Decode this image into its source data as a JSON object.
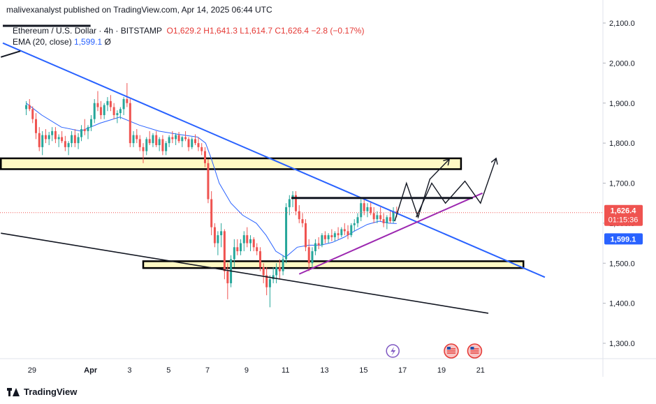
{
  "header": {
    "publisher_line": "malivexanalyst published on TradingView.com, Apr 14, 2025 06:44 UTC"
  },
  "legend": {
    "symbol": "Ethereum / U.S. Dollar · 4h · BITSTAMP",
    "open": "O1,629.2",
    "high": "H1,641.3",
    "low": "L1,614.7",
    "close": "C1,626.4",
    "change": "−2.8 (−0.17%)",
    "ema_label": "EMA (20, close)",
    "ema_value": "1,599.1",
    "ema_symbol": "Ø"
  },
  "footer": {
    "brand": "TradingView"
  },
  "colors": {
    "up": "#26a69a",
    "down": "#ef5350",
    "ema": "#2962ff",
    "trend": "#2962ff",
    "support": "#9c27b0",
    "zone": "#fff9c4",
    "price_tag": "#ef5350",
    "ema_tag": "#2962ff"
  },
  "chart_data": {
    "type": "candlestick",
    "symbol": "ETH/USD",
    "timeframe": "4h",
    "y_ticks": [
      "2,100.0",
      "2,000.0",
      "1,900.0",
      "1,800.0",
      "1,700.0",
      "1,600.0",
      "1,500.0",
      "1,400.0",
      "1,300.0"
    ],
    "x_ticks": [
      "29",
      "Apr",
      "3",
      "5",
      "7",
      "9",
      "11",
      "13",
      "15",
      "17",
      "19",
      "21"
    ],
    "ylim": [
      1240,
      2120
    ],
    "last_price": {
      "value": 1626.4,
      "label": "1,626.4",
      "countdown": "01:15:36"
    },
    "ema_last": {
      "value": 1599.1,
      "label": "1,599.1"
    },
    "candles": [
      [
        28.7,
        1885,
        1905,
        1870,
        1895
      ],
      [
        28.87,
        1895,
        1910,
        1880,
        1885
      ],
      [
        29.03,
        1885,
        1892,
        1850,
        1860
      ],
      [
        29.2,
        1860,
        1875,
        1810,
        1825
      ],
      [
        29.37,
        1825,
        1840,
        1780,
        1790
      ],
      [
        29.53,
        1790,
        1830,
        1770,
        1820
      ],
      [
        29.7,
        1820,
        1835,
        1800,
        1810
      ],
      [
        29.87,
        1810,
        1828,
        1795,
        1820
      ],
      [
        30.03,
        1820,
        1840,
        1805,
        1830
      ],
      [
        30.2,
        1830,
        1840,
        1800,
        1810
      ],
      [
        30.37,
        1810,
        1822,
        1790,
        1815
      ],
      [
        30.53,
        1815,
        1830,
        1800,
        1805
      ],
      [
        30.7,
        1805,
        1818,
        1780,
        1790
      ],
      [
        30.87,
        1790,
        1805,
        1770,
        1800
      ],
      [
        31.03,
        1800,
        1830,
        1790,
        1820
      ],
      [
        31.2,
        1820,
        1835,
        1790,
        1800
      ],
      [
        31.37,
        1800,
        1825,
        1785,
        1815
      ],
      [
        31.53,
        1815,
        1845,
        1805,
        1835
      ],
      [
        31.7,
        1835,
        1860,
        1820,
        1830
      ],
      [
        31.87,
        1830,
        1845,
        1810,
        1840
      ],
      [
        32.03,
        1840,
        1870,
        1830,
        1860
      ],
      [
        32.2,
        1860,
        1910,
        1850,
        1900
      ],
      [
        32.37,
        1900,
        1930,
        1880,
        1890
      ],
      [
        32.53,
        1890,
        1905,
        1860,
        1870
      ],
      [
        32.7,
        1870,
        1900,
        1860,
        1895
      ],
      [
        32.87,
        1895,
        1915,
        1880,
        1905
      ],
      [
        33.03,
        1905,
        1920,
        1880,
        1890
      ],
      [
        33.2,
        1890,
        1900,
        1860,
        1870
      ],
      [
        33.37,
        1870,
        1882,
        1850,
        1875
      ],
      [
        33.53,
        1875,
        1890,
        1860,
        1885
      ],
      [
        33.7,
        1885,
        1915,
        1870,
        1910
      ],
      [
        33.87,
        1910,
        1950,
        1890,
        1900
      ],
      [
        34.03,
        1900,
        1910,
        1790,
        1800
      ],
      [
        34.2,
        1800,
        1830,
        1790,
        1820
      ],
      [
        34.37,
        1820,
        1835,
        1800,
        1810
      ],
      [
        34.53,
        1810,
        1820,
        1780,
        1790
      ],
      [
        34.7,
        1790,
        1800,
        1750,
        1780
      ],
      [
        34.87,
        1780,
        1815,
        1770,
        1810
      ],
      [
        35.03,
        1810,
        1830,
        1795,
        1800
      ],
      [
        35.2,
        1800,
        1825,
        1790,
        1820
      ],
      [
        35.37,
        1820,
        1830,
        1790,
        1795
      ],
      [
        35.53,
        1795,
        1815,
        1780,
        1810
      ],
      [
        35.7,
        1810,
        1820,
        1770,
        1780
      ],
      [
        35.87,
        1780,
        1805,
        1770,
        1800
      ],
      [
        36.03,
        1800,
        1820,
        1790,
        1815
      ],
      [
        36.2,
        1815,
        1830,
        1800,
        1810
      ],
      [
        36.37,
        1810,
        1825,
        1795,
        1820
      ],
      [
        36.53,
        1820,
        1828,
        1800,
        1805
      ],
      [
        36.7,
        1805,
        1818,
        1790,
        1815
      ],
      [
        36.87,
        1815,
        1830,
        1805,
        1810
      ],
      [
        37.03,
        1810,
        1815,
        1780,
        1790
      ],
      [
        37.2,
        1790,
        1815,
        1785,
        1810
      ],
      [
        37.37,
        1810,
        1822,
        1795,
        1800
      ],
      [
        37.53,
        1800,
        1815,
        1780,
        1790
      ],
      [
        37.7,
        1790,
        1800,
        1770,
        1780
      ],
      [
        37.87,
        1780,
        1790,
        1740,
        1750
      ],
      [
        38.03,
        1750,
        1760,
        1650,
        1660
      ],
      [
        38.2,
        1660,
        1680,
        1570,
        1590
      ],
      [
        38.37,
        1590,
        1600,
        1540,
        1550
      ],
      [
        38.53,
        1550,
        1580,
        1520,
        1570
      ],
      [
        38.7,
        1570,
        1600,
        1540,
        1580
      ],
      [
        38.87,
        1580,
        1585,
        1460,
        1480
      ],
      [
        39.03,
        1480,
        1500,
        1410,
        1450
      ],
      [
        39.2,
        1450,
        1520,
        1440,
        1510
      ],
      [
        39.37,
        1510,
        1560,
        1490,
        1540
      ],
      [
        39.53,
        1540,
        1560,
        1520,
        1530
      ],
      [
        39.7,
        1530,
        1560,
        1520,
        1550
      ],
      [
        39.87,
        1550,
        1580,
        1530,
        1570
      ],
      [
        40.03,
        1570,
        1590,
        1540,
        1550
      ],
      [
        40.2,
        1550,
        1570,
        1530,
        1560
      ],
      [
        40.37,
        1560,
        1565,
        1530,
        1540
      ],
      [
        40.53,
        1540,
        1550,
        1520,
        1530
      ],
      [
        40.7,
        1530,
        1540,
        1480,
        1490
      ],
      [
        40.87,
        1490,
        1500,
        1450,
        1470
      ],
      [
        41.03,
        1470,
        1490,
        1420,
        1440
      ],
      [
        41.2,
        1440,
        1470,
        1390,
        1460
      ],
      [
        41.37,
        1460,
        1490,
        1450,
        1470
      ],
      [
        41.53,
        1470,
        1500,
        1450,
        1490
      ],
      [
        41.7,
        1490,
        1510,
        1460,
        1480
      ],
      [
        41.87,
        1480,
        1520,
        1470,
        1510
      ],
      [
        42.03,
        1510,
        1650,
        1500,
        1640
      ],
      [
        42.2,
        1640,
        1670,
        1620,
        1660
      ],
      [
        42.37,
        1660,
        1680,
        1640,
        1670
      ],
      [
        42.53,
        1670,
        1680,
        1620,
        1630
      ],
      [
        42.7,
        1630,
        1645,
        1600,
        1610
      ],
      [
        42.87,
        1610,
        1625,
        1590,
        1600
      ],
      [
        43.03,
        1600,
        1610,
        1530,
        1540
      ],
      [
        43.2,
        1540,
        1560,
        1480,
        1500
      ],
      [
        43.37,
        1500,
        1540,
        1490,
        1530
      ],
      [
        43.53,
        1530,
        1560,
        1520,
        1550
      ],
      [
        43.7,
        1550,
        1565,
        1535,
        1545
      ],
      [
        43.87,
        1545,
        1575,
        1540,
        1570
      ],
      [
        44.03,
        1570,
        1580,
        1550,
        1560
      ],
      [
        44.2,
        1560,
        1575,
        1550,
        1570
      ],
      [
        44.37,
        1570,
        1585,
        1555,
        1565
      ],
      [
        44.53,
        1565,
        1580,
        1555,
        1575
      ],
      [
        44.7,
        1575,
        1590,
        1560,
        1570
      ],
      [
        44.87,
        1570,
        1590,
        1565,
        1585
      ],
      [
        45.03,
        1585,
        1600,
        1570,
        1580
      ],
      [
        45.2,
        1580,
        1595,
        1560,
        1570
      ],
      [
        45.37,
        1570,
        1600,
        1565,
        1595
      ],
      [
        45.53,
        1595,
        1610,
        1580,
        1600
      ],
      [
        45.7,
        1600,
        1625,
        1590,
        1615
      ],
      [
        45.87,
        1615,
        1660,
        1605,
        1650
      ],
      [
        46.03,
        1650,
        1665,
        1620,
        1630
      ],
      [
        46.2,
        1630,
        1650,
        1615,
        1640
      ],
      [
        46.37,
        1640,
        1655,
        1620,
        1625
      ],
      [
        46.53,
        1625,
        1640,
        1600,
        1610
      ],
      [
        46.7,
        1610,
        1630,
        1600,
        1620
      ],
      [
        46.87,
        1620,
        1640,
        1605,
        1610
      ],
      [
        47.03,
        1610,
        1625,
        1590,
        1600
      ],
      [
        47.2,
        1600,
        1620,
        1585,
        1615
      ],
      [
        47.37,
        1615,
        1630,
        1600,
        1605
      ],
      [
        47.53,
        1605,
        1640,
        1600,
        1630
      ],
      [
        47.7,
        1629.2,
        1641.3,
        1614.7,
        1626.4
      ]
    ],
    "ema": [
      [
        28.7,
        1900
      ],
      [
        29.5,
        1870
      ],
      [
        30.5,
        1840
      ],
      [
        31.5,
        1830
      ],
      [
        32.5,
        1850
      ],
      [
        33.5,
        1865
      ],
      [
        34.5,
        1845
      ],
      [
        35.5,
        1830
      ],
      [
        36.5,
        1822
      ],
      [
        37.5,
        1815
      ],
      [
        37.9,
        1800
      ],
      [
        38.2,
        1760
      ],
      [
        38.6,
        1700
      ],
      [
        39.2,
        1650
      ],
      [
        39.8,
        1620
      ],
      [
        40.5,
        1600
      ],
      [
        41.0,
        1570
      ],
      [
        41.5,
        1530
      ],
      [
        42.0,
        1515
      ],
      [
        42.6,
        1540
      ],
      [
        43.2,
        1545
      ],
      [
        43.8,
        1545
      ],
      [
        44.4,
        1552
      ],
      [
        45.0,
        1565
      ],
      [
        45.6,
        1582
      ],
      [
        46.2,
        1597
      ],
      [
        46.8,
        1605
      ],
      [
        47.3,
        1600
      ],
      [
        47.7,
        1599.1
      ]
    ]
  },
  "annotations": {
    "resistance_trend": [
      [
        27.5,
        2050
      ],
      [
        55.3,
        1465
      ]
    ],
    "lower_trend": [
      [
        27.4,
        1575
      ],
      [
        52.4,
        1375
      ]
    ],
    "support_trend": [
      [
        42.7,
        1473
      ],
      [
        52.1,
        1675
      ]
    ],
    "upper_left_tick": [
      [
        27.4,
        2015
      ],
      [
        28.4,
        2030
      ]
    ],
    "top_left_bar": [
      [
        27.5,
        2093
      ],
      [
        32.0,
        2093
      ]
    ],
    "resistance_line": [
      [
        42.3,
        1663
      ],
      [
        51.6,
        1663
      ]
    ],
    "zone_upper": [
      [
        27.4,
        1762
      ],
      [
        51.0,
        1735
      ]
    ],
    "zone_lower": [
      [
        34.7,
        1505
      ],
      [
        54.2,
        1488
      ]
    ],
    "path_a": [
      [
        47.6,
        1605
      ],
      [
        48.2,
        1700
      ],
      [
        48.8,
        1615
      ],
      [
        49.4,
        1710
      ],
      [
        50.4,
        1760
      ]
    ],
    "path_b": [
      [
        48.7,
        1615
      ],
      [
        49.5,
        1700
      ],
      [
        50.2,
        1650
      ],
      [
        51.2,
        1705
      ],
      [
        52.0,
        1650
      ],
      [
        52.8,
        1762
      ]
    ],
    "events": [
      47.5,
      50.5,
      51.7
    ]
  }
}
